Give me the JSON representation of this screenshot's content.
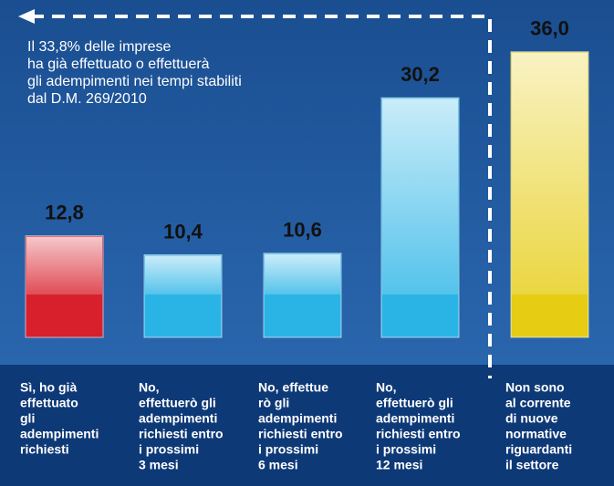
{
  "chart_data": {
    "type": "bar",
    "annotation": [
      "Il 33,8% delle imprese",
      "ha già effettuato o effettuerà",
      "gli adempimenti nei tempi stabiliti",
      "dal D.M. 269/2010"
    ],
    "categories": [
      [
        "Sì, ho già",
        "effettuato",
        "gli",
        "adempimenti",
        "richiesti"
      ],
      [
        "No,",
        "effettuerò gli",
        "adempimenti",
        "richiesti entro",
        "i prossimi",
        "3 mesi"
      ],
      [
        "No, effettue",
        "rò gli",
        "adempimenti",
        "richiesti entro",
        "i prossimi",
        "6 mesi"
      ],
      [
        "No,",
        "effettuerò gli",
        "adempimenti",
        "richiesti entro",
        "i prossimi",
        "12 mesi"
      ],
      [
        "Non sono",
        "al corrente",
        "di nuove",
        "normative",
        "riguardanti",
        "il settore"
      ]
    ],
    "values": [
      12.8,
      10.4,
      10.6,
      30.2,
      36.0
    ],
    "value_labels": [
      "12,8",
      "10,4",
      "10,6",
      "30,2",
      "36,0"
    ],
    "colors": [
      "#d8202c",
      "#2ab4e6",
      "#2ab4e6",
      "#2ab4e6",
      "#e6cc12"
    ]
  }
}
